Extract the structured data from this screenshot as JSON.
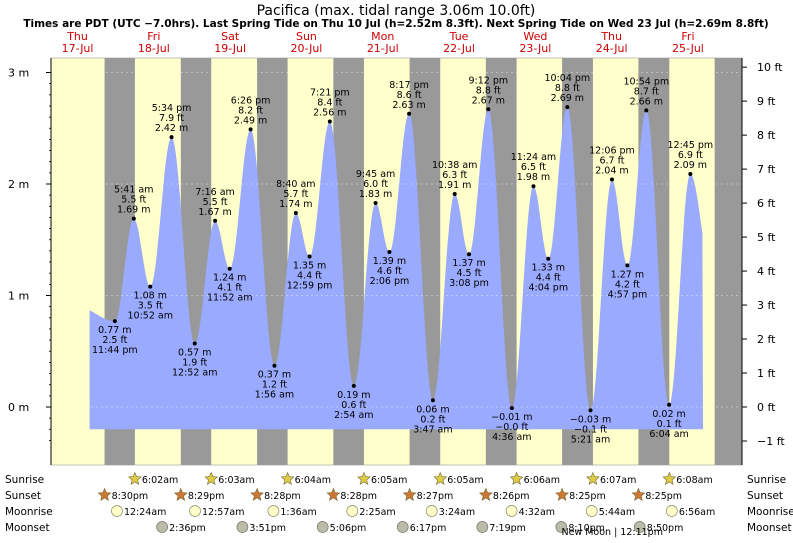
{
  "header": {
    "title": "Pacifica (max. tidal range 3.06m 10.0ft)",
    "subtitle": "Times are PDT (UTC −7.0hrs). Last Spring Tide on Thu 10 Jul (h=2.52m 8.3ft). Next Spring Tide on Wed 23 Jul (h=2.69m 8.8ft)"
  },
  "colors": {
    "day_bg": "#ffffcc",
    "night_bg": "#999999",
    "tide_fill": "#99aaff",
    "day_label": "#cc0000",
    "sunrise_star": "#ddcc44",
    "sunset_star": "#cc7733",
    "moonrise": "#ffffcc",
    "moonset": "#bbbbaa"
  },
  "chart_data": {
    "type": "area",
    "x_axis": "time",
    "time_range": [
      "Thu 17-Jul",
      "Fri 25-Jul"
    ],
    "days": [
      {
        "weekday": "Thu",
        "date": "17-Jul"
      },
      {
        "weekday": "Fri",
        "date": "18-Jul"
      },
      {
        "weekday": "Sat",
        "date": "19-Jul"
      },
      {
        "weekday": "Sun",
        "date": "20-Jul"
      },
      {
        "weekday": "Mon",
        "date": "21-Jul"
      },
      {
        "weekday": "Tue",
        "date": "22-Jul"
      },
      {
        "weekday": "Wed",
        "date": "23-Jul"
      },
      {
        "weekday": "Thu",
        "date": "24-Jul"
      },
      {
        "weekday": "Fri",
        "date": "25-Jul"
      }
    ],
    "y_left": {
      "unit": "m",
      "ylim": [
        -0.45,
        3.15
      ],
      "ticks": [
        0,
        1,
        2,
        3
      ],
      "tick_labels": [
        "0 m",
        "1 m",
        "2 m",
        "3 m"
      ]
    },
    "y_right": {
      "unit": "ft",
      "ticks": [
        -1,
        0,
        1,
        2,
        3,
        4,
        5,
        6,
        7,
        8,
        9,
        10
      ],
      "tick_labels": [
        "−1 ft",
        "0 ft",
        "1 ft",
        "2 ft",
        "3 ft",
        "4 ft",
        "5 ft",
        "6 ft",
        "7 ft",
        "8 ft",
        "9 ft",
        "10 ft"
      ]
    },
    "tides": [
      {
        "day": 1,
        "hour": 5.683,
        "height_m": 1.69,
        "time": "5:41 am",
        "m": "1.69 m",
        "ft": "5.5 ft",
        "type": "high"
      },
      {
        "day": 1,
        "hour": 10.867,
        "height_m": 1.08,
        "time": "10:52 am",
        "m": "1.08 m",
        "ft": "3.5 ft",
        "type": "low"
      },
      {
        "day": 1,
        "hour": 17.567,
        "height_m": 2.42,
        "time": "5:34 pm",
        "m": "2.42 m",
        "ft": "7.9 ft",
        "type": "high"
      },
      {
        "day": 0,
        "hour": 23.733,
        "height_m": 0.77,
        "time": "11:44 pm",
        "m": "0.77 m",
        "ft": "2.5 ft",
        "type": "low"
      },
      {
        "day": 2,
        "hour": 7.267,
        "height_m": 1.67,
        "time": "7:16 am",
        "m": "1.67 m",
        "ft": "5.5 ft",
        "type": "high"
      },
      {
        "day": 2,
        "hour": 11.867,
        "height_m": 1.24,
        "time": "11:52 am",
        "m": "1.24 m",
        "ft": "4.1 ft",
        "type": "low"
      },
      {
        "day": 2,
        "hour": 18.433,
        "height_m": 2.49,
        "time": "6:26 pm",
        "m": "2.49 m",
        "ft": "8.2 ft",
        "type": "high"
      },
      {
        "day": 2,
        "hour": 0.867,
        "height_m": 0.57,
        "time": "12:52 am",
        "m": "0.57 m",
        "ft": "1.9 ft",
        "type": "low"
      },
      {
        "day": 3,
        "hour": 1.933,
        "height_m": 0.37,
        "time": "1:56 am",
        "m": "0.37 m",
        "ft": "1.2 ft",
        "type": "low"
      },
      {
        "day": 3,
        "hour": 8.667,
        "height_m": 1.74,
        "time": "8:40 am",
        "m": "1.74 m",
        "ft": "5.7 ft",
        "type": "high"
      },
      {
        "day": 3,
        "hour": 12.983,
        "height_m": 1.35,
        "time": "12:59 pm",
        "m": "1.35 m",
        "ft": "4.4 ft",
        "type": "low"
      },
      {
        "day": 3,
        "hour": 19.35,
        "height_m": 2.56,
        "time": "7:21 pm",
        "m": "2.56 m",
        "ft": "8.4 ft",
        "type": "high"
      },
      {
        "day": 4,
        "hour": 2.9,
        "height_m": 0.19,
        "time": "2:54 am",
        "m": "0.19 m",
        "ft": "0.6 ft",
        "type": "low"
      },
      {
        "day": 4,
        "hour": 9.75,
        "height_m": 1.83,
        "time": "9:45 am",
        "m": "1.83 m",
        "ft": "6.0 ft",
        "type": "high"
      },
      {
        "day": 4,
        "hour": 14.1,
        "height_m": 1.39,
        "time": "2:06 pm",
        "m": "1.39 m",
        "ft": "4.6 ft",
        "type": "low"
      },
      {
        "day": 4,
        "hour": 20.283,
        "height_m": 2.63,
        "time": "8:17 pm",
        "m": "2.63 m",
        "ft": "8.6 ft",
        "type": "high"
      },
      {
        "day": 5,
        "hour": 3.783,
        "height_m": 0.06,
        "time": "3:47 am",
        "m": "0.06 m",
        "ft": "0.2 ft",
        "type": "low"
      },
      {
        "day": 5,
        "hour": 10.633,
        "height_m": 1.91,
        "time": "10:38 am",
        "m": "1.91 m",
        "ft": "6.3 ft",
        "type": "high"
      },
      {
        "day": 5,
        "hour": 15.133,
        "height_m": 1.37,
        "time": "3:08 pm",
        "m": "1.37 m",
        "ft": "4.5 ft",
        "type": "low"
      },
      {
        "day": 5,
        "hour": 21.2,
        "height_m": 2.67,
        "time": "9:12 pm",
        "m": "2.67 m",
        "ft": "8.8 ft",
        "type": "high"
      },
      {
        "day": 6,
        "hour": 4.6,
        "height_m": -0.01,
        "time": "4:36 am",
        "m": "−0.01 m",
        "ft": "−0.0 ft",
        "type": "low"
      },
      {
        "day": 6,
        "hour": 11.4,
        "height_m": 1.98,
        "time": "11:24 am",
        "m": "1.98 m",
        "ft": "6.5 ft",
        "type": "high"
      },
      {
        "day": 6,
        "hour": 16.067,
        "height_m": 1.33,
        "time": "4:04 pm",
        "m": "1.33 m",
        "ft": "4.4 ft",
        "type": "low"
      },
      {
        "day": 6,
        "hour": 22.067,
        "height_m": 2.69,
        "time": "10:04 pm",
        "m": "2.69 m",
        "ft": "8.8 ft",
        "type": "high"
      },
      {
        "day": 7,
        "hour": 5.35,
        "height_m": -0.03,
        "time": "5:21 am",
        "m": "−0.03 m",
        "ft": "−0.1 ft",
        "type": "low"
      },
      {
        "day": 7,
        "hour": 12.1,
        "height_m": 2.04,
        "time": "12:06 pm",
        "m": "2.04 m",
        "ft": "6.7 ft",
        "type": "high"
      },
      {
        "day": 7,
        "hour": 16.95,
        "height_m": 1.27,
        "time": "4:57 pm",
        "m": "1.27 m",
        "ft": "4.2 ft",
        "type": "low"
      },
      {
        "day": 7,
        "hour": 22.9,
        "height_m": 2.66,
        "time": "10:54 pm",
        "m": "2.66 m",
        "ft": "8.7 ft",
        "type": "high"
      },
      {
        "day": 8,
        "hour": 6.067,
        "height_m": 0.02,
        "time": "6:04 am",
        "m": "0.02 m",
        "ft": "0.1 ft",
        "type": "low"
      },
      {
        "day": 8,
        "hour": 12.75,
        "height_m": 2.09,
        "time": "12:45 pm",
        "m": "2.09 m",
        "ft": "6.9 ft",
        "type": "high"
      }
    ],
    "rows": [
      {
        "label": "Sunrise",
        "kind": "sunrise",
        "events": [
          {
            "day": 1,
            "hour": 6.033,
            "text": "6:02am"
          },
          {
            "day": 2,
            "hour": 6.05,
            "text": "6:03am"
          },
          {
            "day": 3,
            "hour": 6.067,
            "text": "6:04am"
          },
          {
            "day": 4,
            "hour": 6.083,
            "text": "6:05am"
          },
          {
            "day": 5,
            "hour": 6.083,
            "text": "6:05am"
          },
          {
            "day": 6,
            "hour": 6.1,
            "text": "6:06am"
          },
          {
            "day": 7,
            "hour": 6.117,
            "text": "6:07am"
          },
          {
            "day": 8,
            "hour": 6.133,
            "text": "6:08am"
          }
        ]
      },
      {
        "label": "Sunset",
        "kind": "sunset",
        "events": [
          {
            "day": 0,
            "hour": 20.5,
            "text": "8:30pm"
          },
          {
            "day": 1,
            "hour": 20.483,
            "text": "8:29pm"
          },
          {
            "day": 2,
            "hour": 20.467,
            "text": "8:28pm"
          },
          {
            "day": 3,
            "hour": 20.467,
            "text": "8:28pm"
          },
          {
            "day": 4,
            "hour": 20.45,
            "text": "8:27pm"
          },
          {
            "day": 5,
            "hour": 20.433,
            "text": "8:26pm"
          },
          {
            "day": 6,
            "hour": 20.417,
            "text": "8:25pm"
          },
          {
            "day": 7,
            "hour": 20.417,
            "text": "8:25pm"
          }
        ]
      },
      {
        "label": "Moonrise",
        "kind": "moonrise",
        "events": [
          {
            "day": 1,
            "hour": 0.4,
            "text": "12:24am"
          },
          {
            "day": 2,
            "hour": 0.95,
            "text": "12:57am"
          },
          {
            "day": 3,
            "hour": 1.6,
            "text": "1:36am"
          },
          {
            "day": 4,
            "hour": 2.417,
            "text": "2:25am"
          },
          {
            "day": 5,
            "hour": 3.4,
            "text": "3:24am"
          },
          {
            "day": 6,
            "hour": 4.533,
            "text": "4:32am"
          },
          {
            "day": 7,
            "hour": 5.733,
            "text": "5:44am"
          },
          {
            "day": 8,
            "hour": 6.933,
            "text": "6:56am"
          }
        ]
      },
      {
        "label": "Moonset",
        "kind": "moonset",
        "events": [
          {
            "day": 1,
            "hour": 14.6,
            "text": "2:36pm"
          },
          {
            "day": 2,
            "hour": 15.85,
            "text": "3:51pm"
          },
          {
            "day": 3,
            "hour": 17.1,
            "text": "5:06pm"
          },
          {
            "day": 4,
            "hour": 18.283,
            "text": "6:17pm"
          },
          {
            "day": 5,
            "hour": 19.317,
            "text": "7:19pm"
          },
          {
            "day": 6,
            "hour": 20.167,
            "text": "8:10pm"
          },
          {
            "day": 7,
            "hour": 20.833,
            "text": "8:50pm"
          }
        ]
      }
    ],
    "moon_phase": {
      "text": "New Moon | 12:11pm",
      "day": 7,
      "hour": 12.183
    }
  }
}
